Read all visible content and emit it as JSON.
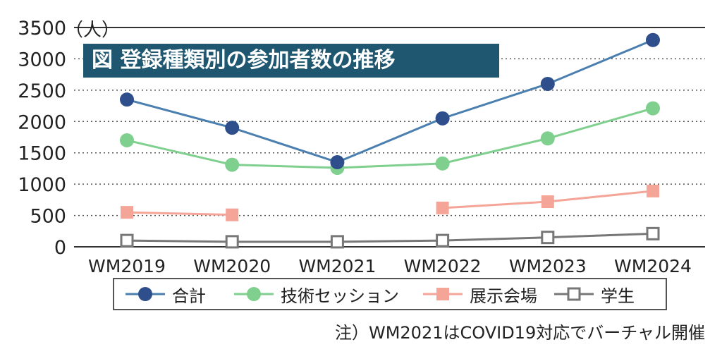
{
  "chart_data": {
    "type": "line",
    "title": "図 登録種類別の参加者数の推移",
    "unit_label": "（人）",
    "categories": [
      "WM2019",
      "WM2020",
      "WM2021",
      "WM2022",
      "WM2023",
      "WM2024"
    ],
    "y_ticks": [
      "0",
      "500",
      "1000",
      "1500",
      "2000",
      "2500",
      "3000",
      "3500"
    ],
    "ylim": [
      0,
      3500
    ],
    "grid": "dotted horizontal",
    "legend_placement": "bottom",
    "series": [
      {
        "name": "合計",
        "marker": "circle",
        "color": "#4a7fb0",
        "marker_color": "#2e4f8c",
        "values": [
          2350,
          1900,
          1350,
          2050,
          2600,
          3300
        ]
      },
      {
        "name": "技術セッション",
        "marker": "circle",
        "color": "#7fcf8e",
        "marker_color": "#7fcf8e",
        "values": [
          1700,
          1310,
          1260,
          1330,
          1730,
          2210
        ]
      },
      {
        "name": "展示会場",
        "marker": "square",
        "color": "#f5a597",
        "marker_color": "#f5a597",
        "values": [
          550,
          510,
          null,
          620,
          720,
          890
        ]
      },
      {
        "name": "学生",
        "marker": "open-square",
        "color": "#777777",
        "marker_color": "#777777",
        "values": [
          100,
          80,
          80,
          100,
          150,
          210
        ]
      }
    ],
    "note": "注）WM2021はCOVID19対応でバーチャル開催"
  }
}
